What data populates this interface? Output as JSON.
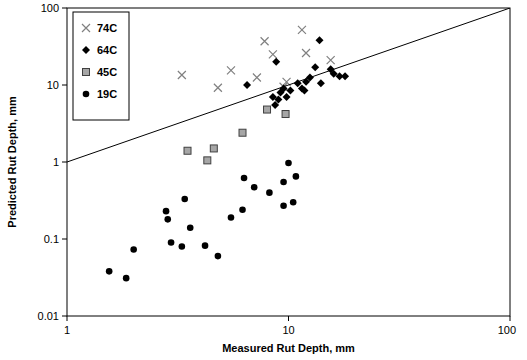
{
  "chart_data": {
    "type": "scatter",
    "x_label": "Measured Rut Depth, mm",
    "y_label": "Predicted Rut Depth, mm",
    "log": true,
    "grid": false,
    "legend": "top-left",
    "xlim": [
      1,
      100
    ],
    "ylim": [
      0.01,
      100
    ],
    "xticks": [
      1,
      10,
      100
    ],
    "yticks": [
      0.01,
      0.1,
      1,
      10,
      100
    ],
    "series": [
      {
        "name": "74C",
        "color": "#808080",
        "marker": "x",
        "x": [
          3.3,
          5.5,
          4.8,
          7.2,
          7.8,
          8.5,
          9.5,
          9.8,
          11.5,
          12,
          15.5
        ],
        "values": [
          13.5,
          15.5,
          9.2,
          12.5,
          37,
          25,
          9.5,
          11,
          52,
          26,
          21
        ]
      },
      {
        "name": "64C",
        "color": "#000000",
        "marker": "diamond",
        "x": [
          6.5,
          8.5,
          8.7,
          8.8,
          9.2,
          9.5,
          9.8,
          9,
          10.2,
          11,
          11.5,
          11.8,
          12,
          12.5,
          13.2,
          13.8,
          14,
          15.5,
          16,
          17,
          18
        ],
        "values": [
          10,
          7,
          5.5,
          20,
          8,
          9,
          7,
          6.5,
          8.5,
          10.5,
          9,
          8.5,
          11,
          12.5,
          17,
          38,
          10.5,
          16,
          14,
          13,
          13
        ]
      },
      {
        "name": "45C",
        "color": "#a6a6a6",
        "marker": "square",
        "x": [
          3.5,
          4.3,
          4.6,
          6.2,
          8,
          9.7
        ],
        "values": [
          1.4,
          1.05,
          1.5,
          2.4,
          4.8,
          4.2
        ]
      },
      {
        "name": "19C",
        "color": "#000000",
        "marker": "circle",
        "x": [
          1.55,
          1.85,
          2,
          2.8,
          2.85,
          2.95,
          3.3,
          3.4,
          3.6,
          4.2,
          4.8,
          5.5,
          6.2,
          6.3,
          7,
          8.2,
          9.5,
          9.5,
          10,
          10.5,
          10.8
        ],
        "values": [
          0.038,
          0.031,
          0.073,
          0.23,
          0.18,
          0.09,
          0.08,
          0.33,
          0.14,
          0.082,
          0.06,
          0.19,
          0.24,
          0.62,
          0.47,
          0.4,
          0.27,
          0.55,
          0.97,
          0.3,
          0.65
        ]
      },
      {
        "type": "line",
        "color": "#000000",
        "line_style": "solid",
        "x": [
          1,
          100
        ],
        "values": [
          1,
          100
        ]
      }
    ]
  }
}
